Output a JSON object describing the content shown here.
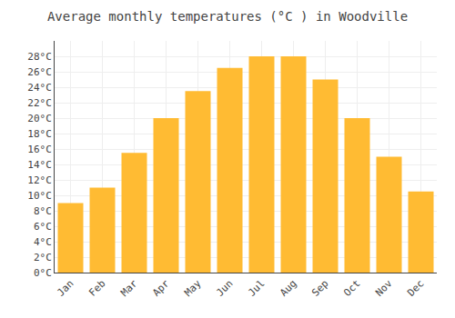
{
  "chart_data": {
    "type": "bar",
    "title": "Average monthly temperatures (°C ) in Woodville",
    "categories": [
      "Jan",
      "Feb",
      "Mar",
      "Apr",
      "May",
      "Jun",
      "Jul",
      "Aug",
      "Sep",
      "Oct",
      "Nov",
      "Dec"
    ],
    "values": [
      9,
      11,
      15.5,
      20,
      23.5,
      26.5,
      28,
      28,
      25,
      20,
      15,
      10.5
    ],
    "color": "#FFBB33",
    "ylim": [
      0,
      30
    ],
    "yticks": [
      {
        "value": 0,
        "label": "0°C"
      },
      {
        "value": 2,
        "label": "2°C"
      },
      {
        "value": 4,
        "label": "4°C"
      },
      {
        "value": 6,
        "label": "6°C"
      },
      {
        "value": 8,
        "label": "8°C"
      },
      {
        "value": 10,
        "label": "10°C"
      },
      {
        "value": 12,
        "label": "12°C"
      },
      {
        "value": 14,
        "label": "14°C"
      },
      {
        "value": 16,
        "label": "16°C"
      },
      {
        "value": 18,
        "label": "18°C"
      },
      {
        "value": 20,
        "label": "20°C"
      },
      {
        "value": 22,
        "label": "22°C"
      },
      {
        "value": 24,
        "label": "24°C"
      },
      {
        "value": 26,
        "label": "26°C"
      },
      {
        "value": 28,
        "label": "28°C"
      }
    ],
    "grid": true
  }
}
